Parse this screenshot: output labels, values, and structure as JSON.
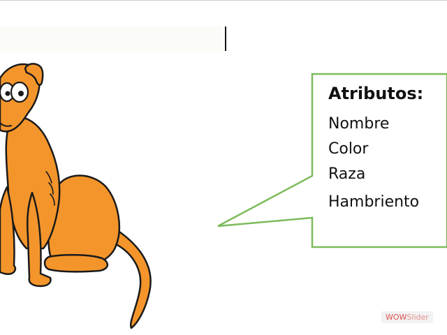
{
  "slide": {
    "callout": {
      "heading": "Atributos:",
      "items": [
        "Nombre",
        "Color",
        "Raza",
        "Hambriento"
      ],
      "border_color": "#7dbb5b"
    },
    "illustration": {
      "icon": "cartoon-dog",
      "fill_color": "#f4952b",
      "outline_color": "#1a1a1a"
    },
    "watermark": {
      "text_strong": "WOW",
      "text_light": "Slider"
    }
  }
}
